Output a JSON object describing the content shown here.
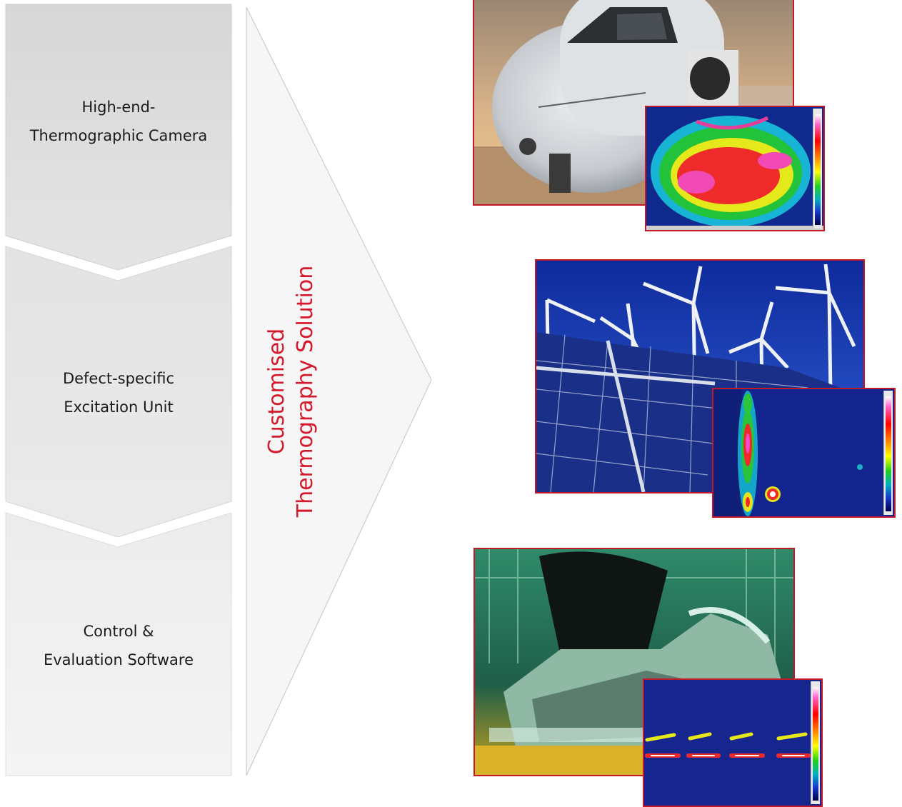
{
  "process_steps": [
    {
      "label": "High-end-\nThermographic Camera"
    },
    {
      "label": "Defect-specific\nExcitation Unit"
    },
    {
      "label": "Control &\nEvaluation Software"
    }
  ],
  "solution_arrow": {
    "label": "Customised\nThermography Solution",
    "label_color": "#d5182b"
  },
  "application_images": [
    {
      "subject": "aircraft-nose",
      "overlay": "thermal-map-red-yellow"
    },
    {
      "subject": "solar-panels-and-wind-turbines",
      "overlay": "thermal-map-blue-hotspots"
    },
    {
      "subject": "car-body-assembly-line",
      "overlay": "thermal-map-weld-lines"
    }
  ],
  "colors": {
    "step_fill_top": "#d7d7d7",
    "step_fill_bottom": "#f3f3f3",
    "frame_border": "#c2182a",
    "accent_red": "#d5182b"
  }
}
